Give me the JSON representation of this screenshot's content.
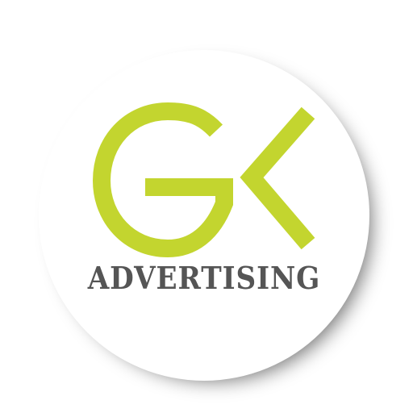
{
  "logo": {
    "monogram": "GK",
    "wordmark": "ADVERTISING"
  },
  "colors": {
    "monogram_green": "#c3d52f",
    "wordmark_gray": "#555555",
    "badge_background": "#ffffff",
    "page_background": "#ffffff"
  }
}
